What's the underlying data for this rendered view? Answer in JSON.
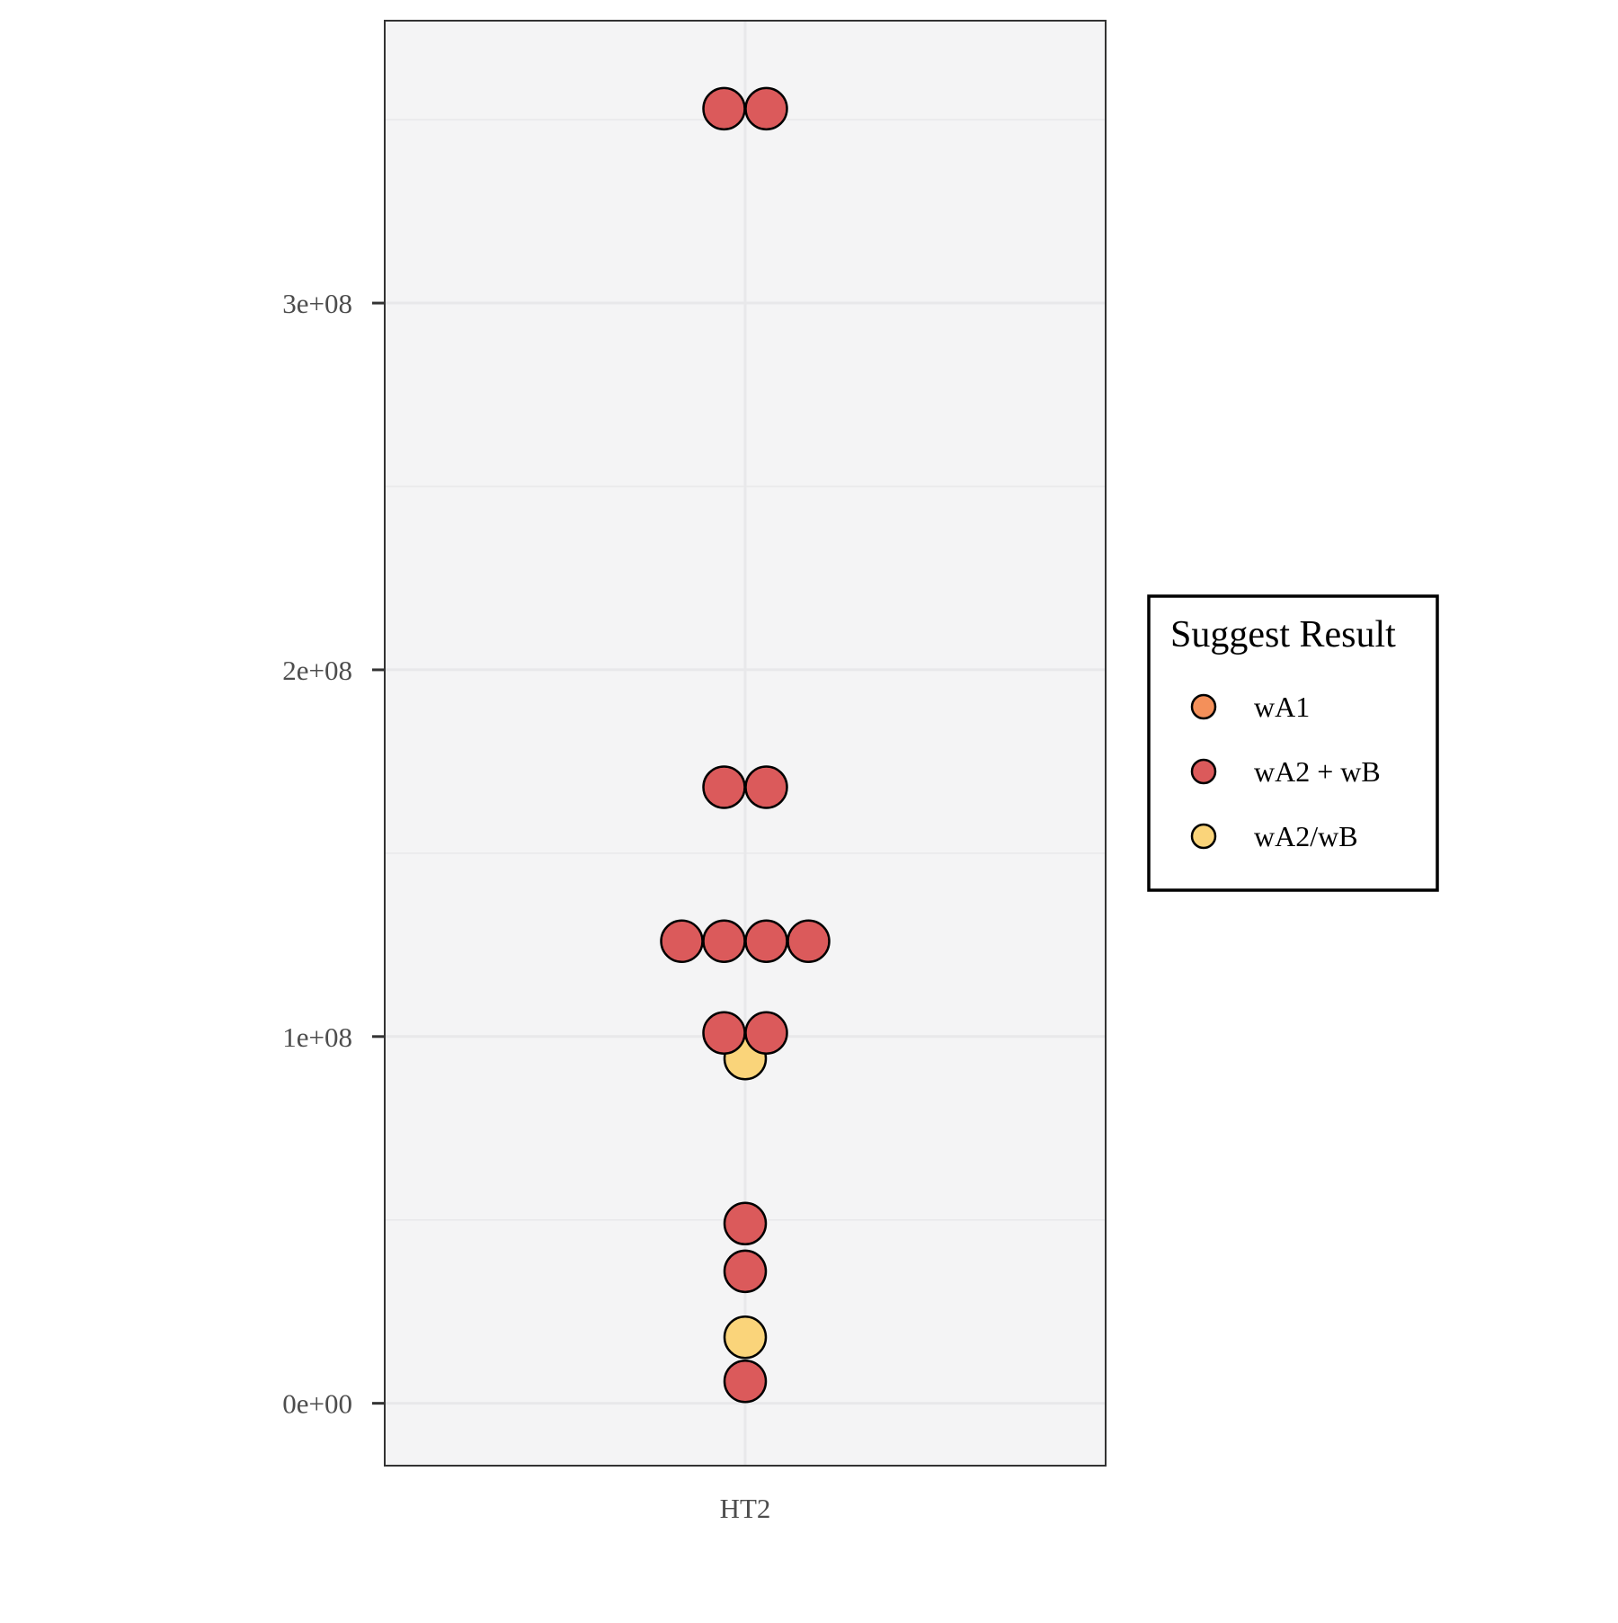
{
  "chart_data": {
    "type": "scatter",
    "subtype": "dotplot",
    "title": "",
    "xlabel": "",
    "ylabel": "",
    "categories": [
      "HT2"
    ],
    "ylim": [
      -17000000,
      377000000
    ],
    "y_ticks": [
      0,
      100000000,
      200000000,
      300000000
    ],
    "y_tick_labels": [
      "0e+00",
      "1e+08",
      "2e+08",
      "3e+08"
    ],
    "y_minor_gridlines": [
      50000000,
      150000000,
      250000000,
      350000000
    ],
    "grid": true,
    "legend": {
      "title": "Suggest Result",
      "position": "right",
      "entries": [
        "wA1",
        "wA2 + wB",
        "wA2/wB"
      ]
    },
    "colors": {
      "wA1": "#F4905A",
      "wA2 + wB": "#DB5A5B",
      "wA2/wB": "#FAD47A",
      "panel_background": "#F4F4F5",
      "grid": "#E8E8EA",
      "point_outline": "#000000"
    },
    "series": [
      {
        "name": "wA1",
        "points": []
      },
      {
        "name": "wA2 + wB",
        "points": [
          {
            "x": "HT2",
            "y": 353000000
          },
          {
            "x": "HT2",
            "y": 353000000
          },
          {
            "x": "HT2",
            "y": 168000000
          },
          {
            "x": "HT2",
            "y": 168000000
          },
          {
            "x": "HT2",
            "y": 126000000
          },
          {
            "x": "HT2",
            "y": 126000000
          },
          {
            "x": "HT2",
            "y": 126000000
          },
          {
            "x": "HT2",
            "y": 126000000
          },
          {
            "x": "HT2",
            "y": 101000000
          },
          {
            "x": "HT2",
            "y": 101000000
          },
          {
            "x": "HT2",
            "y": 49000000
          },
          {
            "x": "HT2",
            "y": 36000000
          },
          {
            "x": "HT2",
            "y": 6000000
          }
        ]
      },
      {
        "name": "wA2/wB",
        "points": [
          {
            "x": "HT2",
            "y": 94000000
          },
          {
            "x": "HT2",
            "y": 18000000
          }
        ]
      }
    ]
  }
}
